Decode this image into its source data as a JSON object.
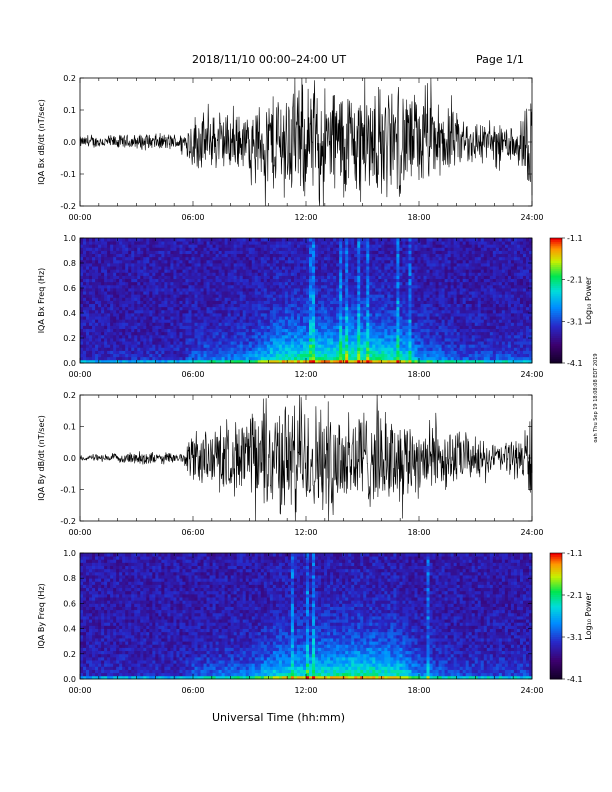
{
  "header": {
    "title": "2018/11/10   00:00–24:00 UT",
    "page": "Page 1/1"
  },
  "x_axis_title": "Universal Time (hh:mm)",
  "side_stamp": "oah Thu Sep 19 18:08:08 EDT 2019",
  "colorbar": {
    "title": "Log₁₀ Power",
    "tick_labels": [
      "-1.1",
      "-2.1",
      "-3.1",
      "-4.1"
    ]
  },
  "chart_data": [
    {
      "type": "line",
      "ylabel": "IQA Bx dB/dt (nT/sec)",
      "x_ticks": [
        "00:00",
        "06:00",
        "12:00",
        "18:00",
        "24:00"
      ],
      "y_ticks": [
        "0.2",
        "0.1",
        "0.0",
        "-0.1",
        "-0.2"
      ],
      "xlim_hours": [
        0,
        24
      ],
      "ylim": [
        -0.2,
        0.2
      ],
      "amplitude_envelope": {
        "hours": [
          0,
          2,
          4,
          5.5,
          6,
          7,
          9,
          10.5,
          11,
          12,
          14,
          15.5,
          16.5,
          18,
          20,
          22,
          23.5,
          24
        ],
        "amplitude": [
          0.02,
          0.025,
          0.03,
          0.03,
          0.1,
          0.1,
          0.1,
          0.2,
          0.2,
          0.2,
          0.2,
          0.2,
          0.2,
          0.17,
          0.1,
          0.06,
          0.1,
          0.2
        ]
      }
    },
    {
      "type": "heatmap",
      "ylabel": "IQA Bx Freq (Hz)",
      "x_ticks": [
        "00:00",
        "06:00",
        "12:00",
        "18:00",
        "24:00"
      ],
      "y_ticks": [
        "1.0",
        "0.8",
        "0.6",
        "0.4",
        "0.2",
        "0.0"
      ],
      "xlim_hours": [
        0,
        24
      ],
      "ylim": [
        0,
        1
      ],
      "zlim": [
        -4.1,
        -1.1
      ],
      "activity_profile": {
        "hours": [
          0,
          5.5,
          6,
          9,
          10.5,
          12,
          15,
          17,
          18,
          20,
          24
        ],
        "level": [
          0.1,
          0.12,
          0.35,
          0.45,
          0.8,
          0.85,
          0.9,
          0.8,
          0.5,
          0.3,
          0.25
        ]
      }
    },
    {
      "type": "line",
      "ylabel": "IQA By dB/dt (nT/sec)",
      "x_ticks": [
        "00:00",
        "06:00",
        "12:00",
        "18:00",
        "24:00"
      ],
      "y_ticks": [
        "0.2",
        "0.1",
        "0.0",
        "-0.1",
        "-0.2"
      ],
      "xlim_hours": [
        0,
        24
      ],
      "ylim": [
        -0.2,
        0.2
      ],
      "amplitude_envelope": {
        "hours": [
          0,
          2,
          3.5,
          4,
          5.5,
          6,
          8,
          10,
          11,
          12,
          14,
          16,
          17,
          18,
          20,
          22,
          23.5,
          24
        ],
        "amplitude": [
          0.01,
          0.015,
          0.03,
          0.015,
          0.02,
          0.1,
          0.12,
          0.2,
          0.2,
          0.2,
          0.2,
          0.17,
          0.15,
          0.14,
          0.1,
          0.05,
          0.08,
          0.2
        ]
      }
    },
    {
      "type": "heatmap",
      "ylabel": "IQA By Freq (Hz)",
      "x_ticks": [
        "00:00",
        "06:00",
        "12:00",
        "18:00",
        "24:00"
      ],
      "y_ticks": [
        "1.0",
        "0.8",
        "0.6",
        "0.4",
        "0.2",
        "0.0"
      ],
      "xlim_hours": [
        0,
        24
      ],
      "ylim": [
        0,
        1
      ],
      "zlim": [
        -4.1,
        -1.1
      ],
      "activity_profile": {
        "hours": [
          0,
          5.5,
          6,
          9,
          10.5,
          12,
          15,
          17,
          18,
          20,
          24
        ],
        "level": [
          0.1,
          0.12,
          0.3,
          0.4,
          0.7,
          0.75,
          0.85,
          0.75,
          0.45,
          0.25,
          0.2
        ]
      }
    }
  ]
}
